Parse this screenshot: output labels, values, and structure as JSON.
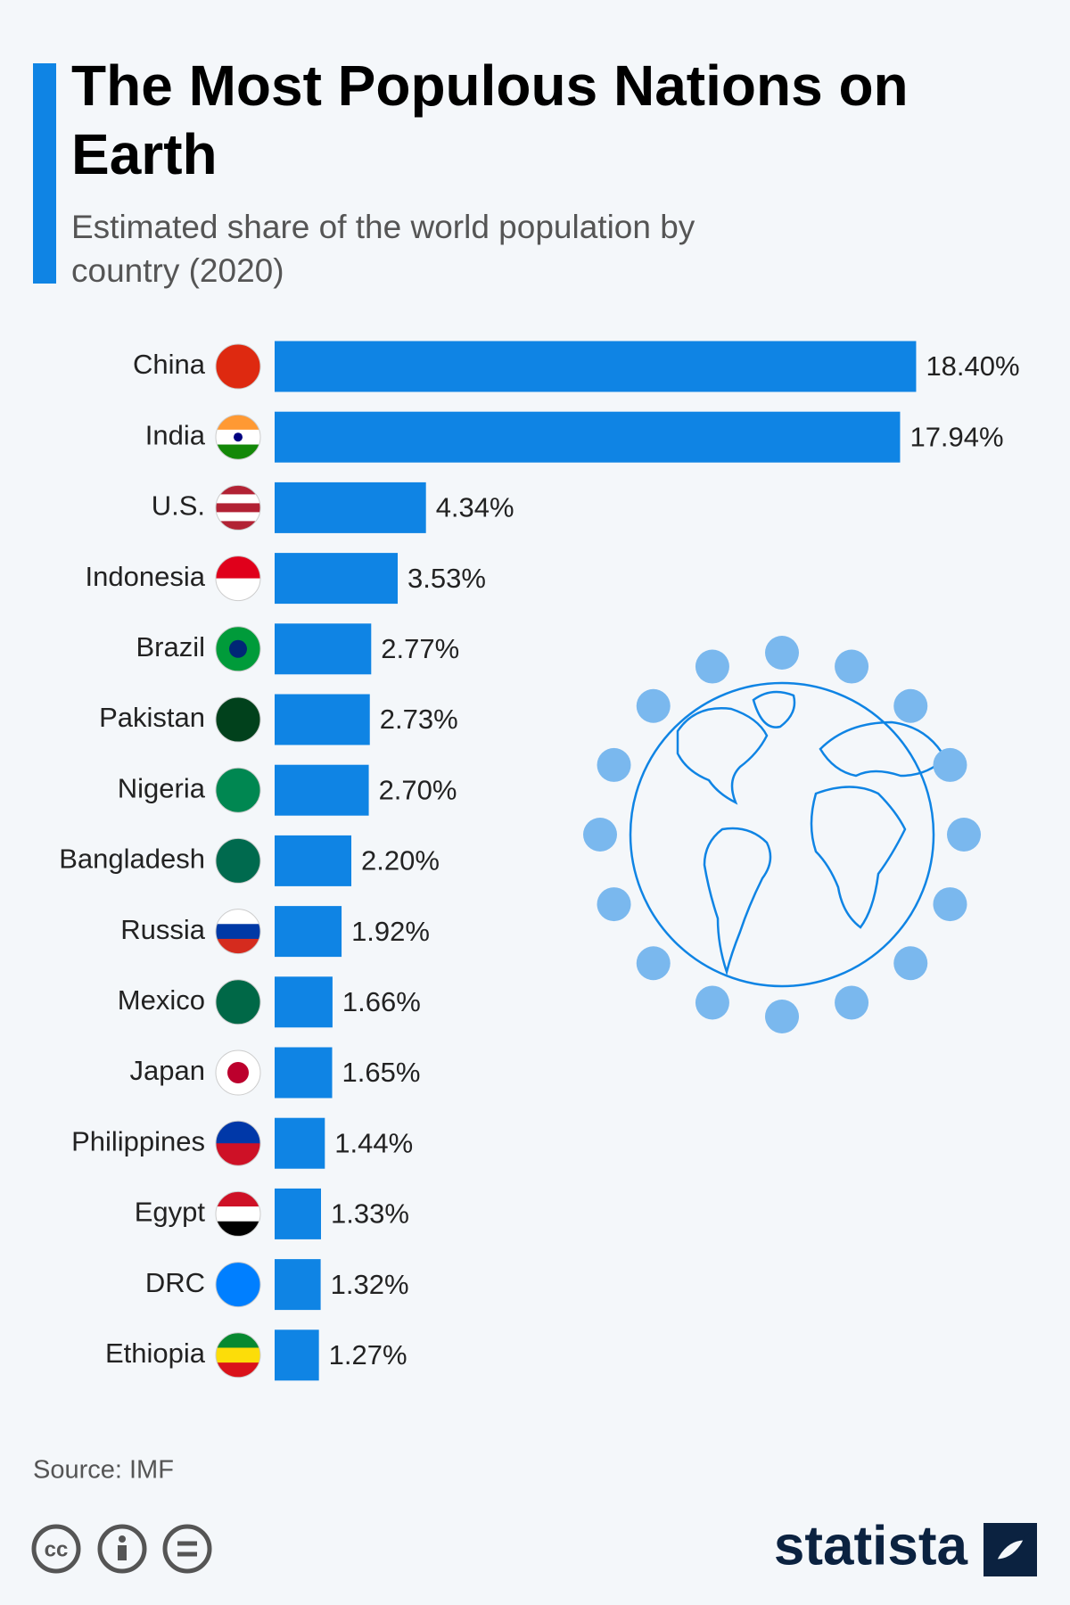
{
  "chart_data": {
    "type": "bar",
    "orientation": "horizontal",
    "title": "The Most Populous Nations on Earth",
    "subtitle": "Estimated share of the world population by country (2020)",
    "categories": [
      "China",
      "India",
      "U.S.",
      "Indonesia",
      "Brazil",
      "Pakistan",
      "Nigeria",
      "Bangladesh",
      "Russia",
      "Mexico",
      "Japan",
      "Philippines",
      "Egypt",
      "DRC",
      "Ethiopia"
    ],
    "values": [
      18.4,
      17.94,
      4.34,
      3.53,
      2.77,
      2.73,
      2.7,
      2.2,
      1.92,
      1.66,
      1.65,
      1.44,
      1.33,
      1.32,
      1.27
    ],
    "value_labels": [
      "18.40%",
      "17.94%",
      "4.34%",
      "3.53%",
      "2.77%",
      "2.73%",
      "2.70%",
      "2.20%",
      "1.92%",
      "1.66%",
      "1.65%",
      "1.44%",
      "1.33%",
      "1.32%",
      "1.27%"
    ],
    "color": "#0f84e4",
    "source": "Source: IMF",
    "license_label": "cc",
    "brand": "statista"
  }
}
